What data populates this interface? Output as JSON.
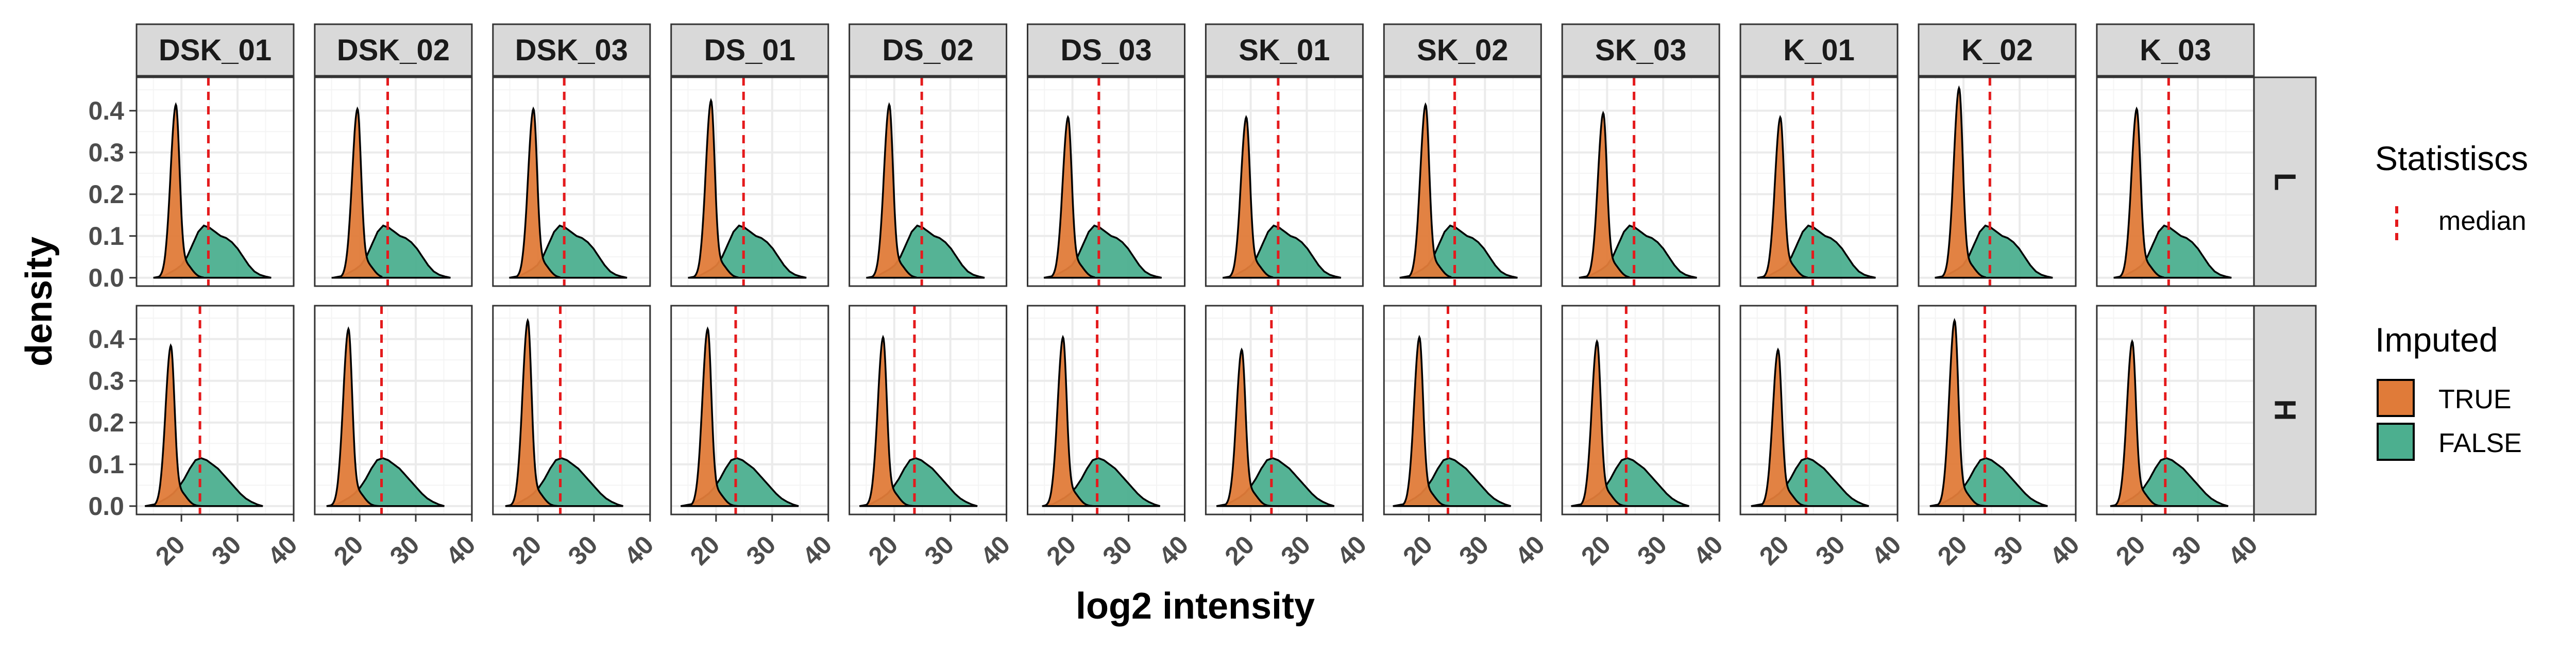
{
  "chart_data": {
    "type": "area",
    "title": "",
    "xlabel": "log2 intensity",
    "ylabel": "density",
    "xlim": [
      12,
      40
    ],
    "ylim": [
      -0.02,
      0.48
    ],
    "x_ticks": [
      20,
      30,
      40
    ],
    "x_tick_labels": [
      "20",
      "30",
      "40"
    ],
    "y_ticks": [
      0.0,
      0.1,
      0.2,
      0.3,
      0.4
    ],
    "y_tick_labels": [
      "0.0",
      "0.1",
      "0.2",
      "0.3",
      "0.4"
    ],
    "grid": true,
    "legend_position": "right",
    "columns": [
      "DSK_01",
      "DSK_02",
      "DSK_03",
      "DS_01",
      "DS_02",
      "DS_03",
      "SK_01",
      "SK_02",
      "SK_03",
      "K_01",
      "K_02",
      "K_03"
    ],
    "rows": [
      "L",
      "H"
    ],
    "colors": {
      "TRUE": "#e07b39",
      "FALSE": "#4caf8f",
      "median": "#e41a1c",
      "strip_fill": "#d9d9d9",
      "grid": "#ebebeb"
    },
    "legend": {
      "statistics_title": "Statistiscs",
      "statistics_items": [
        "median"
      ],
      "imputed_title": "Imputed",
      "imputed_items": [
        "TRUE",
        "FALSE"
      ]
    },
    "panels": {
      "L": {
        "median_by_column": [
          24.8,
          25.0,
          24.7,
          24.9,
          24.9,
          24.7,
          24.9,
          24.6,
          24.8,
          24.9,
          24.7,
          24.8
        ],
        "imputed_true": {
          "peak_x_by_column": [
            19.0,
            19.6,
            19.2,
            19.1,
            19.1,
            19.2,
            19.2,
            19.4,
            19.3,
            19.1,
            19.2,
            19.1
          ],
          "peak_y_by_column": [
            0.4,
            0.39,
            0.39,
            0.41,
            0.4,
            0.37,
            0.37,
            0.4,
            0.38,
            0.37,
            0.44,
            0.39
          ]
        },
        "imputed_false": {
          "x": [
            15,
            17,
            19,
            20,
            21,
            22,
            23,
            24,
            25,
            26,
            27,
            28,
            29,
            30,
            31,
            32,
            33,
            34,
            35,
            36
          ],
          "density": [
            0.0,
            0.005,
            0.02,
            0.03,
            0.05,
            0.08,
            0.11,
            0.125,
            0.12,
            0.11,
            0.1,
            0.095,
            0.085,
            0.07,
            0.05,
            0.03,
            0.015,
            0.007,
            0.003,
            0.0
          ]
        }
      },
      "H": {
        "median_by_column": [
          23.3,
          23.9,
          24.0,
          23.5,
          23.6,
          24.4,
          23.7,
          23.4,
          23.4,
          23.7,
          23.8,
          24.2
        ],
        "imputed_true": {
          "peak_x_by_column": [
            18.1,
            18.0,
            18.2,
            18.5,
            18.0,
            18.3,
            18.4,
            18.3,
            18.2,
            18.7,
            18.4,
            18.3
          ],
          "peak_y_by_column": [
            0.37,
            0.41,
            0.43,
            0.41,
            0.39,
            0.39,
            0.36,
            0.39,
            0.38,
            0.36,
            0.43,
            0.38
          ]
        },
        "imputed_false": {
          "x": [
            15,
            17,
            19,
            20,
            21,
            22,
            23,
            24,
            25,
            26,
            27,
            28,
            29,
            30,
            31,
            32,
            33,
            34,
            35,
            36
          ],
          "density": [
            0.0,
            0.005,
            0.02,
            0.03,
            0.045,
            0.065,
            0.09,
            0.11,
            0.115,
            0.11,
            0.1,
            0.09,
            0.075,
            0.06,
            0.045,
            0.03,
            0.018,
            0.01,
            0.004,
            0.0
          ]
        }
      }
    }
  }
}
